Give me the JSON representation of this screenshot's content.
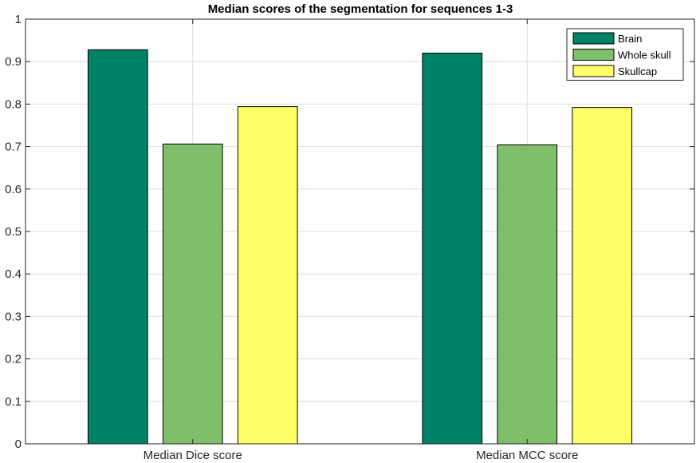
{
  "chart_data": {
    "type": "bar",
    "title": "Median scores of the segmentation for sequences 1-3",
    "xlabel": "",
    "ylabel": "",
    "categories": [
      "Median Dice score",
      "Median MCC score"
    ],
    "series": [
      {
        "name": "Brain",
        "color": "#018166",
        "values": [
          0.928,
          0.92
        ]
      },
      {
        "name": "Whole skull",
        "color": "#80bf69",
        "values": [
          0.706,
          0.704
        ]
      },
      {
        "name": "Skullcap",
        "color": "#ffff66",
        "values": [
          0.794,
          0.792
        ]
      }
    ],
    "ylim": [
      0,
      1
    ],
    "yticks": [
      "0",
      "0.1",
      "0.2",
      "0.3",
      "0.4",
      "0.5",
      "0.6",
      "0.7",
      "0.8",
      "0.9",
      "1"
    ],
    "grid": true,
    "legend_position": "top-right"
  }
}
